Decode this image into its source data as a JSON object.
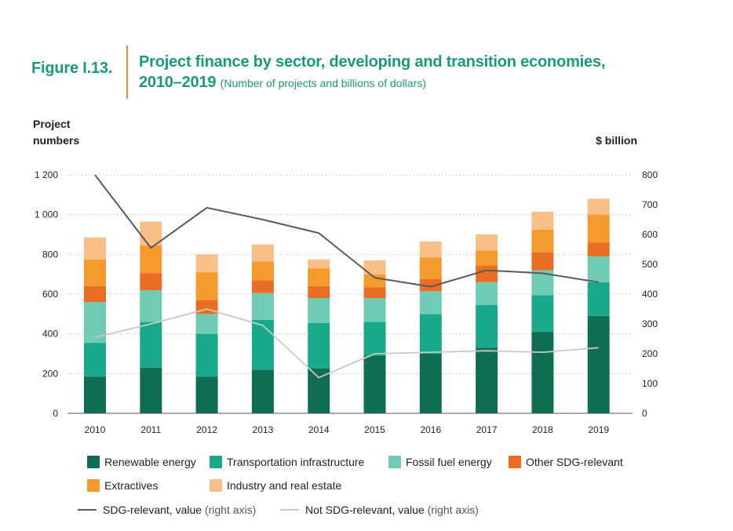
{
  "figure": {
    "label": "Figure I.13.",
    "title_line1": "Project finance by sector, developing and transition economies,",
    "title_line2": "2010–2019",
    "subtitle": "(Number of projects and billions of dollars)"
  },
  "chart_data": {
    "type": "bar",
    "stacked": true,
    "categories": [
      "2010",
      "2011",
      "2012",
      "2013",
      "2014",
      "2015",
      "2016",
      "2017",
      "2018",
      "2019"
    ],
    "left_axis": {
      "label_line1": "Project",
      "label_line2": "numbers",
      "ticks": [
        "0",
        "200",
        "400",
        "600",
        "800",
        "1 000",
        "1 200"
      ],
      "range": [
        0,
        1200
      ]
    },
    "right_axis": {
      "label": "$ billion",
      "ticks": [
        "0",
        "100",
        "200",
        "300",
        "400",
        "500",
        "600",
        "700",
        "800"
      ],
      "range": [
        0,
        800
      ]
    },
    "series": [
      {
        "name": "Renewable energy",
        "color": "#0f6e52",
        "values": [
          185,
          230,
          185,
          220,
          225,
          290,
          300,
          330,
          410,
          490
        ]
      },
      {
        "name": "Transportation infrastructure",
        "color": "#17a98a",
        "values": [
          170,
          230,
          215,
          250,
          230,
          170,
          200,
          215,
          185,
          170
        ]
      },
      {
        "name": "Fossil fuel energy",
        "color": "#6fcbb4",
        "values": [
          205,
          160,
          100,
          135,
          125,
          120,
          115,
          115,
          125,
          130
        ]
      },
      {
        "name": "Other SDG-relevant",
        "color": "#ea6d24",
        "values": [
          80,
          85,
          70,
          65,
          60,
          55,
          60,
          85,
          90,
          70
        ]
      },
      {
        "name": "Extractives",
        "color": "#f59a2c",
        "values": [
          135,
          140,
          140,
          95,
          90,
          65,
          110,
          75,
          115,
          140
        ]
      },
      {
        "name": "Industry and real estate",
        "color": "#f8bf86",
        "values": [
          110,
          120,
          90,
          85,
          45,
          70,
          80,
          80,
          90,
          80
        ]
      }
    ],
    "lines": [
      {
        "name": "SDG-relevant, value",
        "axis": "right",
        "color": "#5a5a5a",
        "values": [
          800,
          555,
          690,
          650,
          605,
          455,
          425,
          480,
          470,
          440
        ]
      },
      {
        "name": "Not SDG-relevant, value",
        "axis": "right",
        "color": "#c8c8c8",
        "values": [
          255,
          300,
          350,
          295,
          120,
          200,
          205,
          210,
          205,
          220
        ]
      }
    ],
    "grid": "dotted horizontal"
  },
  "legend": {
    "renewable": "Renewable energy",
    "transport": "Transportation infrastructure",
    "fossil": "Fossil fuel energy",
    "other": "Other SDG-relevant",
    "extractives": "Extractives",
    "industry": "Industry and real estate",
    "sdg_line": "SDG-relevant, value",
    "not_sdg_line": "Not SDG-relevant, value",
    "right_axis_note": "(right axis)",
    "colors": {
      "renewable": "#0f6e52",
      "transport": "#17a98a",
      "fossil": "#6fcbb4",
      "other": "#ea6d24",
      "extractives": "#f59a2c",
      "industry": "#f8bf86",
      "sdg": "#5a5a5a",
      "not_sdg": "#c8c8c8"
    }
  }
}
